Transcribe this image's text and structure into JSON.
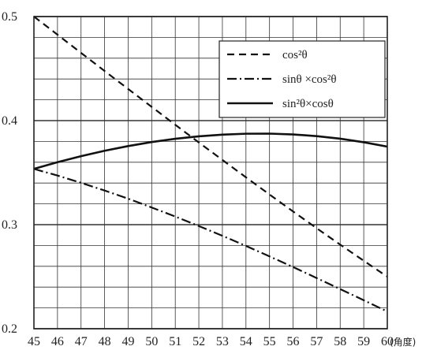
{
  "chart_data": {
    "type": "line",
    "title": "",
    "xlabel": "(角度)",
    "ylabel": "",
    "xlim": [
      45,
      60
    ],
    "ylim": [
      0.2,
      0.5
    ],
    "x": [
      45,
      46,
      47,
      48,
      49,
      50,
      51,
      52,
      53,
      54,
      55,
      56,
      57,
      58,
      59,
      60
    ],
    "x_tick_labels": [
      "45",
      "46",
      "47",
      "48",
      "49",
      "50",
      "51",
      "52",
      "53",
      "54",
      "55",
      "56",
      "57",
      "58",
      "59",
      "60"
    ],
    "y_tick_labels": [
      "0.2",
      "0.3",
      "0.4",
      "0.5"
    ],
    "grid": true,
    "legend_position": "top-right",
    "series": [
      {
        "name": "cos²θ",
        "style": "dashed",
        "values": [
          0.5,
          0.4826,
          0.4651,
          0.4477,
          0.4304,
          0.4132,
          0.396,
          0.379,
          0.3622,
          0.3455,
          0.329,
          0.3127,
          0.2966,
          0.2808,
          0.2653,
          0.25
        ]
      },
      {
        "name": "sinθ ×cos²θ",
        "style": "dash-dot",
        "values": [
          0.3536,
          0.3472,
          0.3402,
          0.3328,
          0.325,
          0.3165,
          0.3078,
          0.2987,
          0.2893,
          0.2796,
          0.2695,
          0.2593,
          0.2487,
          0.2381,
          0.2274,
          0.2165
        ]
      },
      {
        "name": "sin²θ×cosθ",
        "style": "solid",
        "values": [
          0.3536,
          0.36,
          0.3658,
          0.371,
          0.3755,
          0.3794,
          0.3825,
          0.3849,
          0.3865,
          0.3874,
          0.3875,
          0.3867,
          0.3851,
          0.3826,
          0.3792,
          0.375
        ]
      }
    ]
  }
}
